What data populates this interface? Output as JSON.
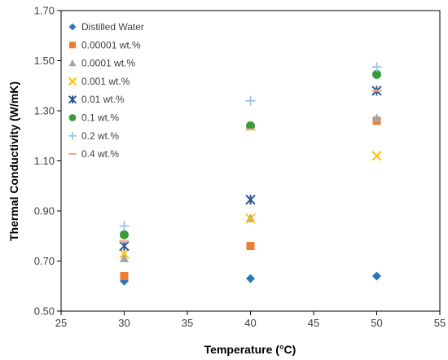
{
  "chart_data": {
    "type": "scatter",
    "title": "",
    "xlabel": "Temperature (°C)",
    "ylabel": "Thermal Conductivity (W/mK)",
    "xlim": [
      25,
      55
    ],
    "ylim": [
      0.5,
      1.7
    ],
    "xticks": [
      25,
      30,
      35,
      40,
      45,
      50,
      55
    ],
    "xtick_labels": [
      "25",
      "30",
      "35",
      "40",
      "45",
      "50",
      "55"
    ],
    "yticks": [
      0.5,
      0.7,
      0.9,
      1.1,
      1.3,
      1.5,
      1.7
    ],
    "ytick_labels": [
      "0.50",
      "0.70",
      "0.90",
      "1.10",
      "1.30",
      "1.50",
      "1.70"
    ],
    "grid": false,
    "legend_position": "top-left",
    "series": [
      {
        "name": "Distilled Water",
        "marker": "diamond",
        "color": "#2E75B6",
        "x": [
          30,
          40,
          50
        ],
        "y": [
          0.62,
          0.63,
          0.64
        ]
      },
      {
        "name": "0.00001 wt.%",
        "marker": "square",
        "color": "#ED7D31",
        "x": [
          30,
          40,
          50
        ],
        "y": [
          0.64,
          0.76,
          1.26
        ]
      },
      {
        "name": "0.0001 wt.%",
        "marker": "triangle",
        "color": "#A5A5A5",
        "x": [
          30,
          40,
          50
        ],
        "y": [
          0.71,
          0.87,
          1.27
        ]
      },
      {
        "name": "0.001 wt.%",
        "marker": "x",
        "color": "#FFC000",
        "x": [
          30,
          40,
          50
        ],
        "y": [
          0.73,
          0.87,
          1.12
        ]
      },
      {
        "name": "0.01 wt.%",
        "marker": "star",
        "color": "#2E5597",
        "x": [
          30,
          40,
          50
        ],
        "y": [
          0.76,
          0.945,
          1.38
        ]
      },
      {
        "name": "0.1 wt.%",
        "marker": "circle",
        "color": "#3B9B3B",
        "x": [
          30,
          40,
          50
        ],
        "y": [
          0.805,
          1.24,
          1.445
        ]
      },
      {
        "name": "0.2 wt.%",
        "marker": "plus",
        "color": "#9DC3E6",
        "x": [
          30,
          40,
          50
        ],
        "y": [
          0.84,
          1.34,
          1.475
        ]
      },
      {
        "name": "0.4 wt.%",
        "marker": "dash",
        "color": "#F4B183",
        "x": [
          30,
          40,
          50
        ],
        "y": [
          0.78,
          1.225,
          1.38
        ]
      }
    ]
  }
}
